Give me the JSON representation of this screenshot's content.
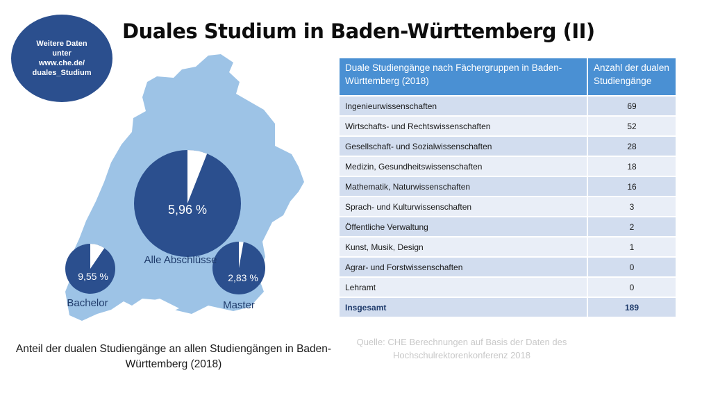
{
  "title": "Duales Studium in Baden-Württemberg (II)",
  "badge": {
    "lines": [
      "Weitere Daten",
      "unter",
      "www.che.de/",
      "duales_Studium"
    ]
  },
  "chart_data": [
    {
      "type": "pie",
      "name": "Alle Abschlüsse",
      "percent_label": "5,96 %",
      "share_percent": 5.96,
      "color": "#2b4f8e"
    },
    {
      "type": "pie",
      "name": "Bachelor",
      "percent_label": "9,55 %",
      "share_percent": 9.55,
      "color": "#2b4f8e"
    },
    {
      "type": "pie",
      "name": "Master",
      "percent_label": "2,83 %",
      "share_percent": 2.83,
      "color": "#2b4f8e"
    },
    {
      "type": "table",
      "columns": [
        "Duale Studiengänge nach Fächergruppen in Baden-Württemberg (2018)",
        "Anzahl der dualen Studiengänge"
      ],
      "rows": [
        [
          "Ingenieurwissenschaften",
          "69"
        ],
        [
          "Wirtschafts- und Rechtswissenschaften",
          "52"
        ],
        [
          "Gesellschaft- und Sozialwissenschaften",
          "28"
        ],
        [
          "Medizin, Gesundheitswissenschaften",
          "18"
        ],
        [
          "Mathematik, Naturwissenschaften",
          "16"
        ],
        [
          "Sprach- und Kulturwissenschaften",
          "3"
        ],
        [
          "Öffentliche Verwaltung",
          "2"
        ],
        [
          "Kunst, Musik, Design",
          "1"
        ],
        [
          "Agrar- und Forstwissenschaften",
          "0"
        ],
        [
          "Lehramt",
          "0"
        ]
      ],
      "total": [
        "Insgesamt",
        "189"
      ]
    }
  ],
  "map_caption": "Anteil der dualen Studiengänge an allen Studiengängen in Baden-Württemberg (2018)",
  "source": "Quelle: CHE Berechnungen auf Basis der Daten des Hochschulrektorenkonferenz 2018",
  "colors": {
    "map": "#9dc3e6",
    "pie": "#2b4f8e",
    "header": "#4a90d3"
  }
}
